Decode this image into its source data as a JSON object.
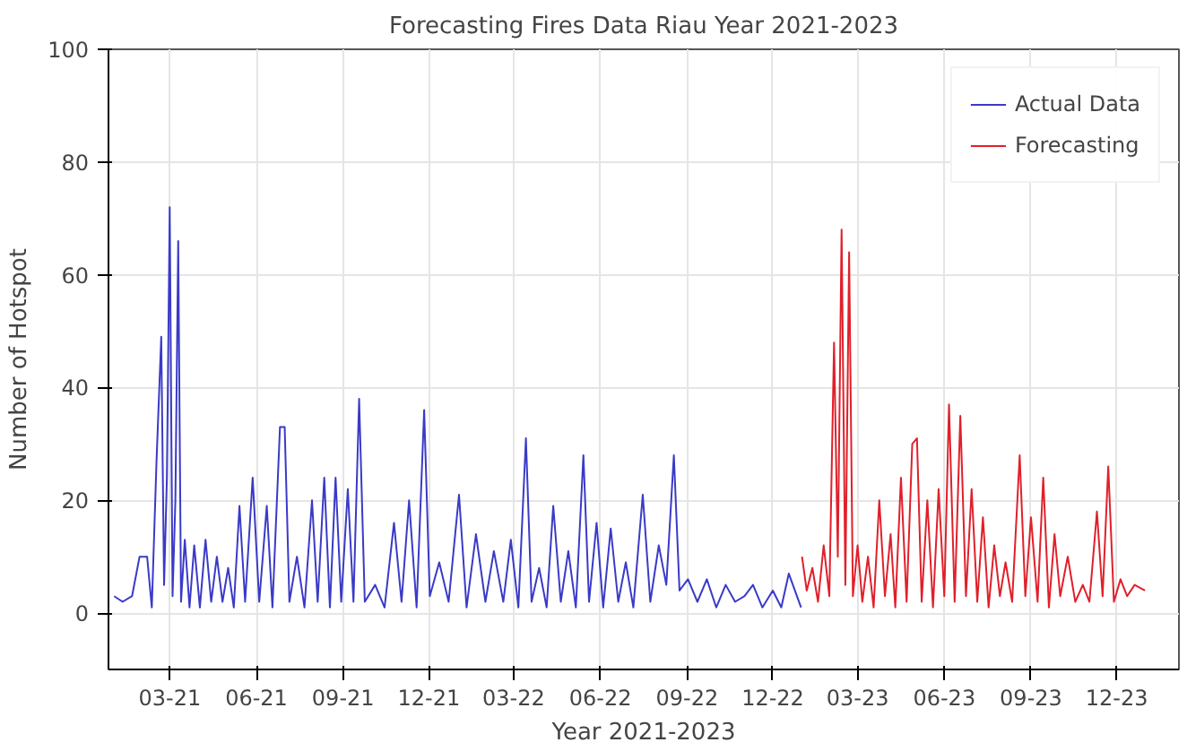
{
  "chart_data": {
    "type": "line",
    "title": "Forecasting Fires Data Riau Year 2021-2023",
    "xlabel": "Year 2021-2023",
    "ylabel": "Number of Hotspot",
    "xlim": [
      "2020-12-26",
      "2024-02-05"
    ],
    "ylim": [
      -10,
      100
    ],
    "xticks": [
      {
        "value": "2021-03-01",
        "label": "03-21"
      },
      {
        "value": "2021-06-01",
        "label": "06-21"
      },
      {
        "value": "2021-09-01",
        "label": "09-21"
      },
      {
        "value": "2021-12-01",
        "label": "12-21"
      },
      {
        "value": "2022-03-01",
        "label": "03-22"
      },
      {
        "value": "2022-06-01",
        "label": "06-22"
      },
      {
        "value": "2022-09-01",
        "label": "09-22"
      },
      {
        "value": "2022-12-01",
        "label": "12-22"
      },
      {
        "value": "2023-03-01",
        "label": "03-23"
      },
      {
        "value": "2023-06-01",
        "label": "06-23"
      },
      {
        "value": "2023-09-01",
        "label": "09-23"
      },
      {
        "value": "2023-12-01",
        "label": "12-23"
      }
    ],
    "yticks": [
      0,
      20,
      40,
      60,
      80,
      100
    ],
    "grid": true,
    "legend": "top right",
    "series": [
      {
        "name": "Actual Data",
        "color": "#3a3ac8",
        "x": [
          "2021-01-01",
          "2021-01-10",
          "2021-01-20",
          "2021-01-28",
          "2021-02-05",
          "2021-02-10",
          "2021-02-15",
          "2021-02-20",
          "2021-02-23",
          "2021-02-26",
          "2021-03-01",
          "2021-03-04",
          "2021-03-07",
          "2021-03-10",
          "2021-03-13",
          "2021-03-17",
          "2021-03-22",
          "2021-03-27",
          "2021-04-02",
          "2021-04-08",
          "2021-04-14",
          "2021-04-20",
          "2021-04-26",
          "2021-05-02",
          "2021-05-08",
          "2021-05-14",
          "2021-05-20",
          "2021-05-28",
          "2021-06-04",
          "2021-06-12",
          "2021-06-18",
          "2021-06-26",
          "2021-07-01",
          "2021-07-06",
          "2021-07-14",
          "2021-07-22",
          "2021-07-30",
          "2021-08-05",
          "2021-08-12",
          "2021-08-18",
          "2021-08-24",
          "2021-08-30",
          "2021-09-06",
          "2021-09-12",
          "2021-09-18",
          "2021-09-24",
          "2021-10-05",
          "2021-10-15",
          "2021-10-25",
          "2021-11-02",
          "2021-11-10",
          "2021-11-18",
          "2021-11-26",
          "2021-12-02",
          "2021-12-12",
          "2021-12-22",
          "2022-01-02",
          "2022-01-10",
          "2022-01-20",
          "2022-01-30",
          "2022-02-08",
          "2022-02-18",
          "2022-02-26",
          "2022-03-06",
          "2022-03-14",
          "2022-03-20",
          "2022-03-28",
          "2022-04-05",
          "2022-04-12",
          "2022-04-20",
          "2022-04-28",
          "2022-05-06",
          "2022-05-14",
          "2022-05-20",
          "2022-05-28",
          "2022-06-04",
          "2022-06-12",
          "2022-06-20",
          "2022-06-28",
          "2022-07-06",
          "2022-07-16",
          "2022-07-24",
          "2022-08-02",
          "2022-08-10",
          "2022-08-18",
          "2022-08-24",
          "2022-09-02",
          "2022-09-12",
          "2022-09-22",
          "2022-10-02",
          "2022-10-12",
          "2022-10-22",
          "2022-11-01",
          "2022-11-10",
          "2022-11-20",
          "2022-12-01",
          "2022-12-10",
          "2022-12-18",
          "2022-12-31"
        ],
        "values": [
          3,
          2,
          3,
          10,
          10,
          1,
          27,
          49,
          5,
          24,
          72,
          3,
          20,
          66,
          2,
          13,
          1,
          12,
          1,
          13,
          2,
          10,
          2,
          8,
          1,
          19,
          2,
          24,
          2,
          19,
          1,
          33,
          33,
          2,
          10,
          1,
          20,
          2,
          24,
          1,
          24,
          2,
          22,
          2,
          38,
          2,
          5,
          1,
          16,
          2,
          20,
          1,
          36,
          3,
          9,
          2,
          21,
          1,
          14,
          2,
          11,
          2,
          13,
          1,
          31,
          2,
          8,
          1,
          19,
          2,
          11,
          1,
          28,
          2,
          16,
          1,
          15,
          2,
          9,
          1,
          21,
          2,
          12,
          5,
          28,
          4,
          6,
          2,
          6,
          1,
          5,
          2,
          3,
          5,
          1,
          4,
          1,
          7,
          1
        ]
      },
      {
        "name": "Forecasting",
        "color": "#e0202a",
        "x": [
          "2023-01-01",
          "2023-01-06",
          "2023-01-12",
          "2023-01-18",
          "2023-01-24",
          "2023-01-30",
          "2023-02-04",
          "2023-02-08",
          "2023-02-12",
          "2023-02-16",
          "2023-02-20",
          "2023-02-24",
          "2023-03-01",
          "2023-03-06",
          "2023-03-12",
          "2023-03-18",
          "2023-03-24",
          "2023-03-30",
          "2023-04-05",
          "2023-04-10",
          "2023-04-16",
          "2023-04-22",
          "2023-04-28",
          "2023-05-03",
          "2023-05-08",
          "2023-05-14",
          "2023-05-20",
          "2023-05-26",
          "2023-06-01",
          "2023-06-06",
          "2023-06-12",
          "2023-06-18",
          "2023-06-24",
          "2023-06-30",
          "2023-07-06",
          "2023-07-12",
          "2023-07-18",
          "2023-07-24",
          "2023-07-30",
          "2023-08-05",
          "2023-08-12",
          "2023-08-20",
          "2023-08-26",
          "2023-09-01",
          "2023-09-08",
          "2023-09-14",
          "2023-09-20",
          "2023-09-26",
          "2023-10-02",
          "2023-10-10",
          "2023-10-18",
          "2023-10-26",
          "2023-11-02",
          "2023-11-10",
          "2023-11-16",
          "2023-11-22",
          "2023-11-28",
          "2023-12-05",
          "2023-12-12",
          "2023-12-20",
          "2023-12-31"
        ],
        "values": [
          10,
          4,
          8,
          2,
          12,
          3,
          48,
          10,
          68,
          5,
          64,
          3,
          12,
          2,
          10,
          1,
          20,
          3,
          14,
          1,
          24,
          2,
          30,
          31,
          2,
          20,
          1,
          22,
          3,
          37,
          2,
          35,
          3,
          22,
          2,
          17,
          1,
          12,
          3,
          9,
          2,
          28,
          3,
          17,
          2,
          24,
          1,
          14,
          3,
          10,
          2,
          5,
          2,
          18,
          3,
          26,
          2,
          6,
          3,
          5,
          4
        ]
      }
    ]
  }
}
